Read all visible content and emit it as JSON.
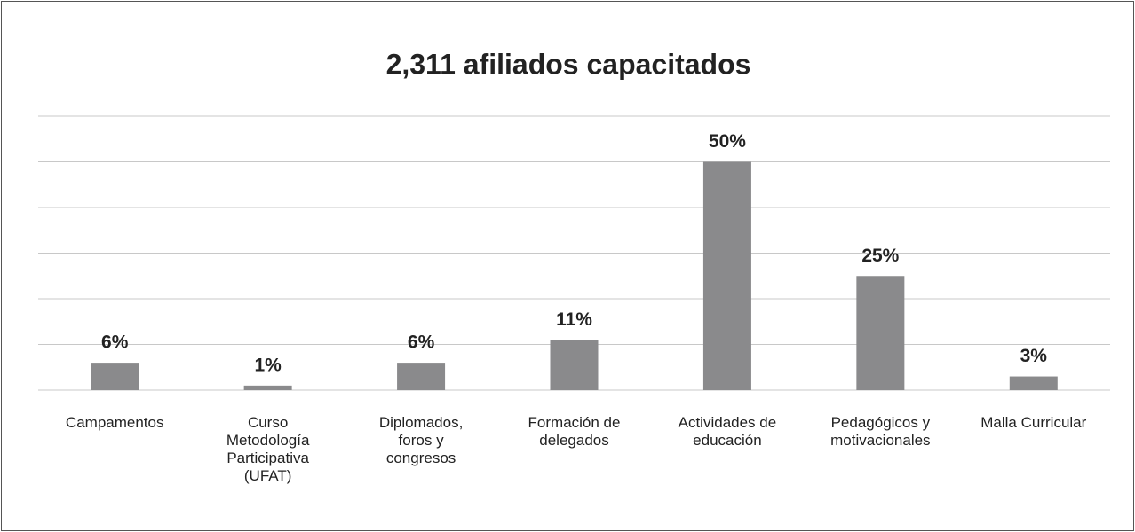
{
  "chart_data": {
    "type": "bar",
    "title": "2,311 afiliados capacitados",
    "categories": [
      "Campamentos",
      "Curso Metodología Participativa (UFAT)",
      "Diplomados, foros y congresos",
      "Formación de delegados",
      "Actividades de educación",
      "Pedagógicos y motivacionales",
      "Malla Curricular"
    ],
    "values": [
      6,
      1,
      6,
      11,
      50,
      25,
      3
    ],
    "value_labels": [
      "6%",
      "1%",
      "6%",
      "11%",
      "50%",
      "25%",
      "3%"
    ],
    "color": "#8a8a8c",
    "ylim": [
      0,
      60
    ],
    "yticks": [
      0,
      10,
      20,
      30,
      40,
      50,
      60
    ],
    "grid": true
  }
}
